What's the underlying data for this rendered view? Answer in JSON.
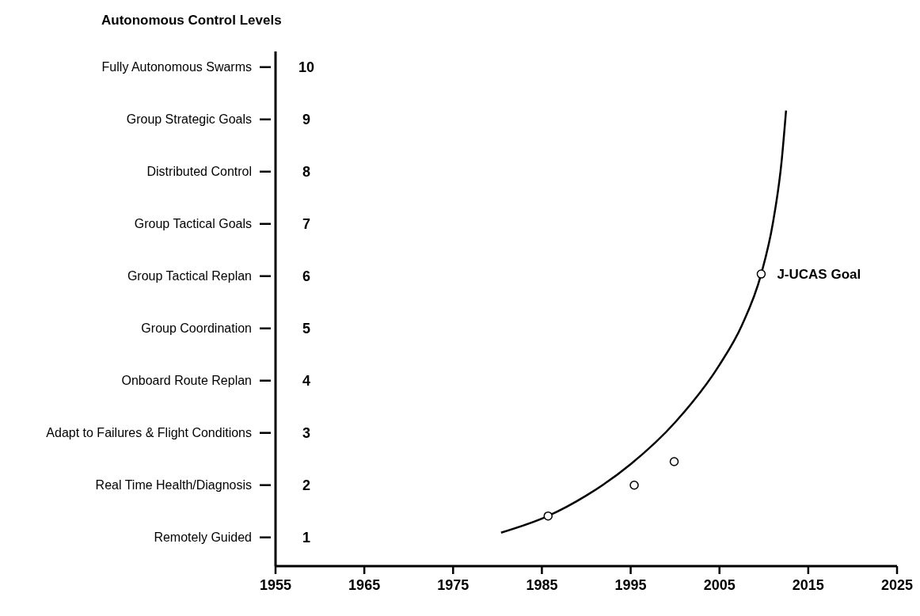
{
  "chart_data": {
    "type": "line",
    "ylabel": "Autonomous Control Levels",
    "xlim": [
      1955,
      2025
    ],
    "xticks": [
      1955,
      1965,
      1975,
      1985,
      1995,
      2005,
      2015,
      2025
    ],
    "ylim": [
      0.45,
      10.3
    ],
    "yticks": [
      1,
      2,
      3,
      4,
      5,
      6,
      7,
      8,
      9,
      10
    ],
    "grid": false,
    "legend": false,
    "series": [
      {
        "color": "#000000",
        "marker": "none",
        "line_style": "solid",
        "x": [
          1980.4,
          1985.7,
          1990,
          1995,
          2000,
          2005,
          2007.5,
          2009.7,
          2011,
          2012,
          2012.5
        ],
        "values": [
          1.09,
          1.41,
          1.8,
          2.4,
          3.2,
          4.3,
          5.05,
          6.04,
          7,
          8.2,
          9.17
        ]
      },
      {
        "type": "scatter",
        "color": "#000000",
        "marker": "circle",
        "x": [
          1985.7,
          1995.4,
          1999.9,
          2009.7
        ],
        "values": [
          1.41,
          2.0,
          2.45,
          6.04
        ]
      }
    ],
    "annotations": [
      {
        "text": "J-UCAS Goal",
        "x": 2009.7,
        "y": 6.04
      },
      "Remotely Guided",
      "Real Time Health/Diagnosis",
      "Adapt to Failures & Flight Conditions",
      "Onboard Route Replan",
      "Group Coordination",
      "Group Tactical Replan",
      "Group Tactical Goals",
      "Distributed Control",
      "Group Strategic Goals",
      "Fully Autonomous Swarms"
    ]
  }
}
